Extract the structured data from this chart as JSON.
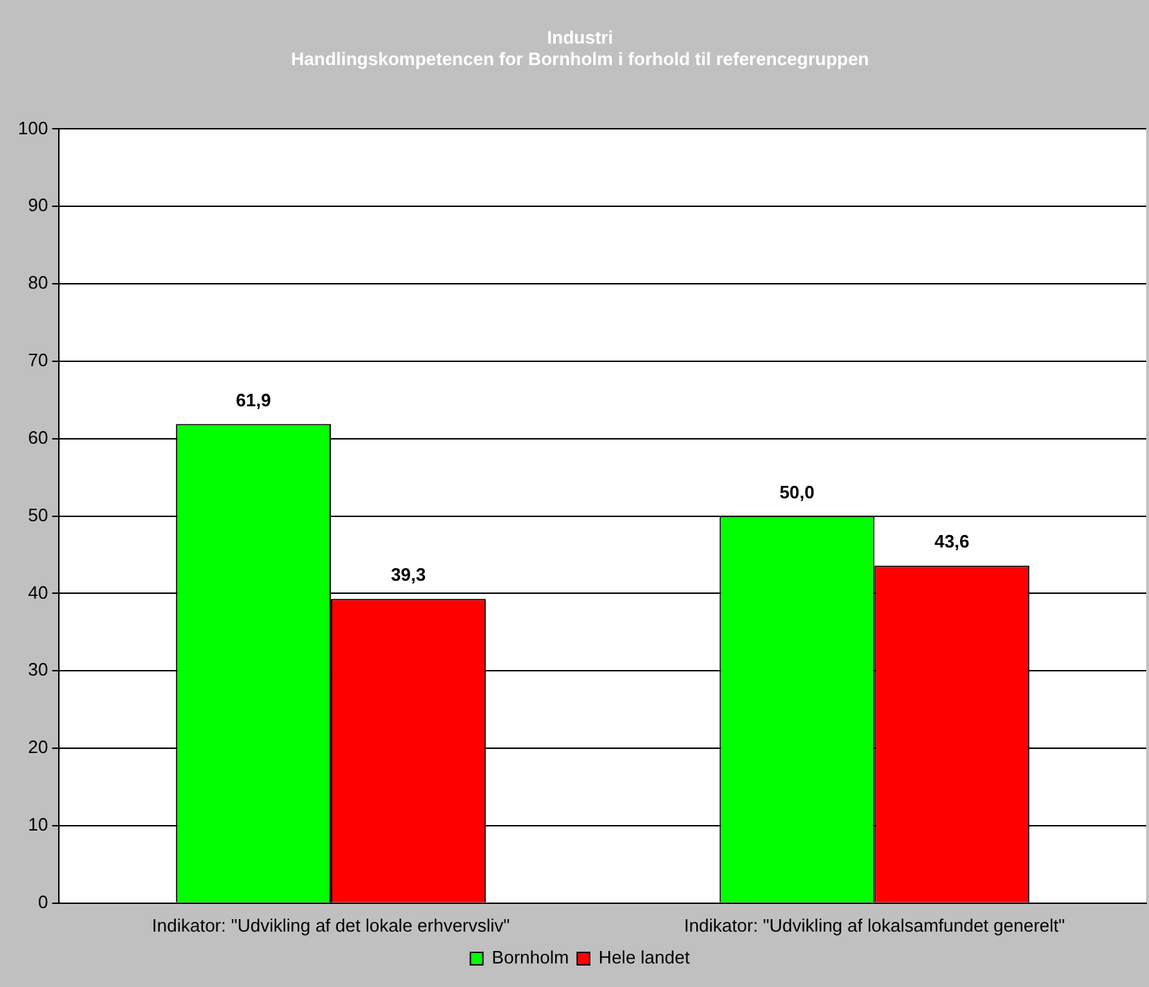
{
  "chart_data": {
    "type": "bar",
    "title": [
      "Industri",
      "Handlingskompetencen for Bornholm i forhold til referencegruppen"
    ],
    "categories": [
      "Indikator: \"Udvikling af det lokale erhvervsliv\"",
      "Indikator: \"Udvikling af lokalsamfundet generelt\""
    ],
    "series": [
      {
        "name": "Bornholm",
        "color": "#00ff00",
        "values": [
          61.9,
          50.0
        ],
        "value_labels": [
          "61,9",
          "50,0"
        ]
      },
      {
        "name": "Hele landet",
        "color": "#ff0000",
        "values": [
          39.3,
          43.6
        ],
        "value_labels": [
          "39,3",
          "43,6"
        ]
      }
    ],
    "ylim": [
      0,
      100
    ],
    "yticks": [
      0,
      10,
      20,
      30,
      40,
      50,
      60,
      70,
      80,
      90,
      100
    ],
    "grid": "y",
    "legend": "bottom"
  }
}
